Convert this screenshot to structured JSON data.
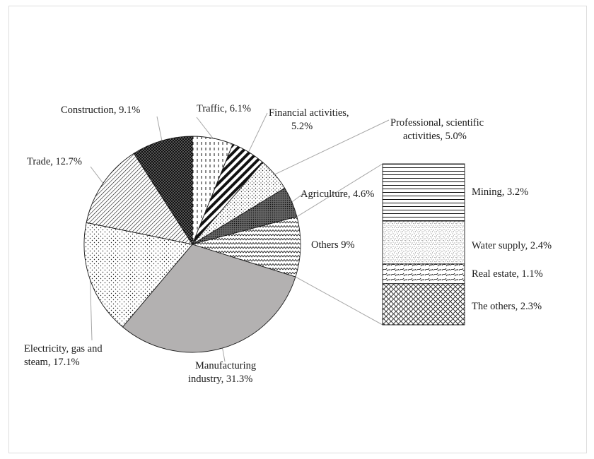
{
  "chart_data": {
    "type": "pie",
    "title": "",
    "pie": {
      "slices": [
        {
          "label": "Traffic, 6.1%",
          "value": 6.1,
          "pattern": "dashes"
        },
        {
          "label": "Financial activities, 5.2%",
          "value": 5.2,
          "pattern": "bold-diagonal"
        },
        {
          "label": "Professional, scientific activities, 5.0%",
          "value": 5.0,
          "pattern": "sparse-dots"
        },
        {
          "label": "Agriculture, 4.6%",
          "value": 4.6,
          "pattern": "dense-dots"
        },
        {
          "label": "Others 9%",
          "value": 9.0,
          "pattern": "waves"
        },
        {
          "label": "Manufacturing industry, 31.3%",
          "value": 31.3,
          "pattern": "solid-gray"
        },
        {
          "label": "Electricity, gas and steam, 17.1%",
          "value": 17.1,
          "pattern": "dots"
        },
        {
          "label": "Trade, 12.7%",
          "value": 12.7,
          "pattern": "fine-diagonal"
        },
        {
          "label": "Construction, 9.1%",
          "value": 9.1,
          "pattern": "black-dots"
        }
      ]
    },
    "breakdown_bar": {
      "of": "Others 9%",
      "segments": [
        {
          "label": "Mining, 3.2%",
          "value": 3.2,
          "pattern": "horizontal-lines"
        },
        {
          "label": "Water supply, 2.4%",
          "value": 2.4,
          "pattern": "speckle"
        },
        {
          "label": "Real estate, 1.1%",
          "value": 1.1,
          "pattern": "squiggle"
        },
        {
          "label": "The others, 2.3%",
          "value": 2.3,
          "pattern": "crosshatch"
        }
      ]
    },
    "labels": {
      "traffic": [
        "Traffic, 6.1%"
      ],
      "financial": [
        "Financial activities,",
        "5.2%"
      ],
      "professional": [
        "Professional, scientific",
        "activities, 5.0%"
      ],
      "agriculture": [
        "Agriculture, 4.6%"
      ],
      "others": [
        "Others 9%"
      ],
      "manufacturing": [
        "Manufacturing",
        "industry, 31.3%"
      ],
      "electricity": [
        "Electricity, gas and",
        "steam, 17.1%"
      ],
      "trade": [
        "Trade, 12.7%"
      ],
      "construction": [
        "Construction, 9.1%"
      ],
      "mining": [
        "Mining, 3.2%"
      ],
      "water": [
        "Water supply, 2.4%"
      ],
      "realestate": [
        "Real estate, 1.1%"
      ],
      "theothers": [
        "The others, 2.3%"
      ]
    },
    "colors": {
      "manufacturing_fill": "#b3b1b1",
      "stroke": "#1a1a1a",
      "leader_line": "#a6a6a6"
    }
  }
}
